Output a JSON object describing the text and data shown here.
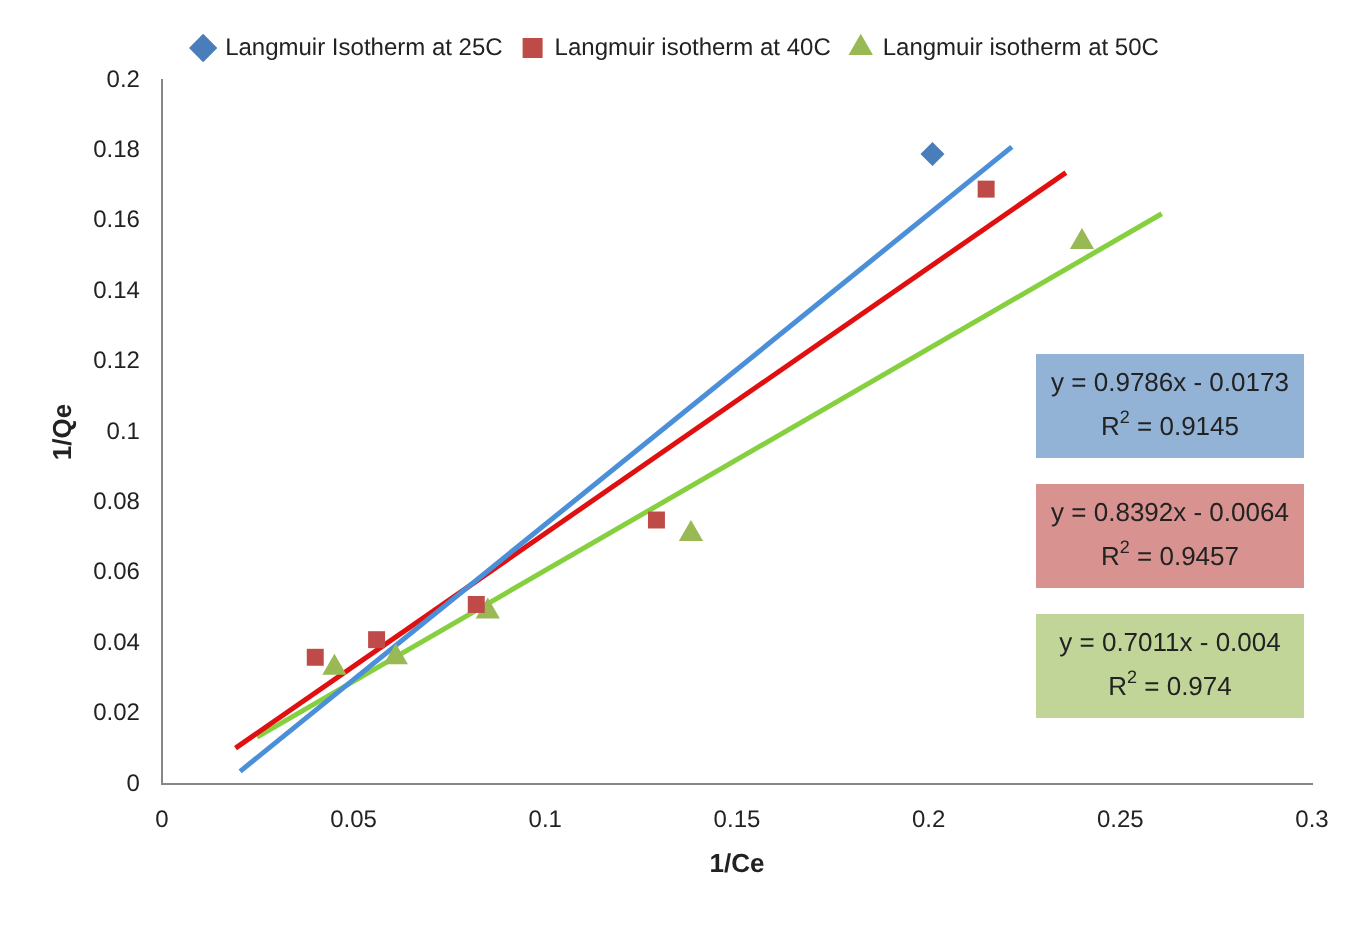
{
  "chart_data": {
    "type": "scatter",
    "xlabel": "1/Ce",
    "ylabel": "1/Qe",
    "xlim": [
      0,
      0.3
    ],
    "ylim": [
      0,
      0.2
    ],
    "xticks": [
      0,
      0.05,
      0.1,
      0.15,
      0.2,
      0.25,
      0.3
    ],
    "yticks": [
      0,
      0.02,
      0.04,
      0.06,
      0.08,
      0.1,
      0.12,
      0.14,
      0.16,
      0.18,
      0.2
    ],
    "grid": false,
    "legend": "top",
    "series": [
      {
        "name": "Langmuir Isotherm at 25C",
        "marker": "diamond",
        "color": "#4a7ebb",
        "x": [
          0.201
        ],
        "values": [
          0.179
        ]
      },
      {
        "name": "Langmuir isotherm at 40C",
        "marker": "square",
        "color": "#be4b48",
        "x": [
          0.04,
          0.056,
          0.082,
          0.129,
          0.215
        ],
        "values": [
          0.036,
          0.041,
          0.051,
          0.075,
          0.169
        ]
      },
      {
        "name": "Langmuir isotherm at 50C",
        "marker": "triangle",
        "color": "#98b954",
        "x": [
          0.045,
          0.061,
          0.085,
          0.138,
          0.24
        ],
        "values": [
          0.033,
          0.036,
          0.049,
          0.071,
          0.154
        ]
      },
      {
        "type": "line",
        "color": "#4a8fd8",
        "x": [
          0.0204,
          0.2217
        ],
        "values": [
          0.0036,
          0.181
        ]
      },
      {
        "type": "line",
        "color": "#e01010",
        "x": [
          0.0192,
          0.2358
        ],
        "values": [
          0.0102,
          0.1737
        ]
      },
      {
        "type": "line",
        "color": "#86d040",
        "x": [
          0.0248,
          0.2608
        ],
        "values": [
          0.0133,
          0.162
        ]
      }
    ],
    "annotations": [
      "y = 0.9786x - 0.0173\nR$^{2}$ = 0.9145",
      "y = 0.8392x - 0.0064\nR$^{2}$ = 0.9457",
      "y = 0.7011x - 0.004\nR$^{2}$ = 0.974"
    ]
  }
}
